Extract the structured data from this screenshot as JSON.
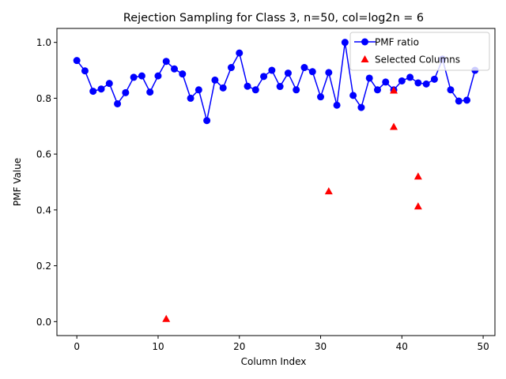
{
  "chart_data": {
    "type": "line",
    "title": "Rejection Sampling for Class 3, n=50, col=log2n = 6",
    "xlabel": "Column Index",
    "ylabel": "PMF Value",
    "xlim": [
      -2.45,
      51.45
    ],
    "ylim": [
      -0.05,
      1.05
    ],
    "xticks": [
      0,
      10,
      20,
      30,
      40,
      50
    ],
    "yticks": [
      0.0,
      0.2,
      0.4,
      0.6,
      0.8,
      1.0
    ],
    "xtick_labels": [
      "0",
      "10",
      "20",
      "30",
      "40",
      "50"
    ],
    "ytick_labels": [
      "0.0",
      "0.2",
      "0.4",
      "0.6",
      "0.8",
      "1.0"
    ],
    "grid": false,
    "legend_position": "upper right",
    "series": [
      {
        "name": "PMF ratio",
        "type": "line",
        "marker": "circle",
        "color": "#0000ff",
        "x": [
          0,
          1,
          2,
          3,
          4,
          5,
          6,
          7,
          8,
          9,
          10,
          11,
          12,
          13,
          14,
          15,
          16,
          17,
          18,
          19,
          20,
          21,
          22,
          23,
          24,
          25,
          26,
          27,
          28,
          29,
          30,
          31,
          32,
          33,
          34,
          35,
          36,
          37,
          38,
          39,
          40,
          41,
          42,
          43,
          44,
          45,
          46,
          47,
          48,
          49
        ],
        "y": [
          0.935,
          0.898,
          0.825,
          0.833,
          0.853,
          0.78,
          0.82,
          0.875,
          0.88,
          0.822,
          0.88,
          0.932,
          0.905,
          0.887,
          0.8,
          0.83,
          0.72,
          0.865,
          0.837,
          0.91,
          0.962,
          0.843,
          0.83,
          0.878,
          0.9,
          0.842,
          0.89,
          0.83,
          0.91,
          0.895,
          0.805,
          0.892,
          0.775,
          1.0,
          0.81,
          0.767,
          0.872,
          0.83,
          0.858,
          0.83,
          0.862,
          0.875,
          0.855,
          0.851,
          0.868,
          0.94,
          0.83,
          0.79,
          0.793,
          0.9
        ]
      },
      {
        "name": "Selected Columns",
        "type": "scatter",
        "marker": "triangle",
        "color": "#ff0000",
        "x": [
          11,
          31,
          39,
          39,
          42,
          42
        ],
        "y": [
          0.01,
          0.467,
          0.698,
          0.828,
          0.52,
          0.413
        ]
      }
    ]
  }
}
